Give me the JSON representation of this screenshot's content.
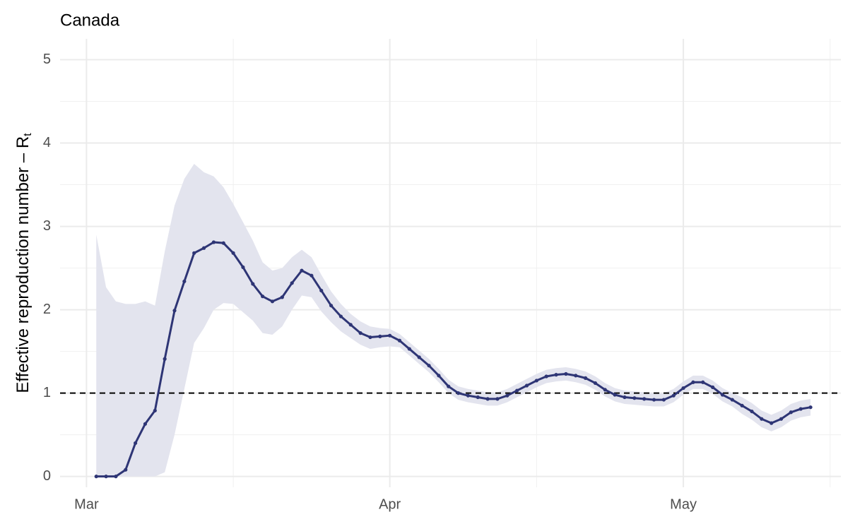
{
  "chart_data": {
    "type": "line",
    "title": "Canada",
    "ylabel": "Effective reproduction number – R",
    "ylabel_subscript": "t",
    "x": [
      1,
      2,
      3,
      4,
      5,
      6,
      7,
      8,
      9,
      10,
      11,
      12,
      13,
      14,
      15,
      16,
      17,
      18,
      19,
      20,
      21,
      22,
      23,
      24,
      25,
      26,
      27,
      28,
      29,
      30,
      31,
      32,
      33,
      34,
      35,
      36,
      37,
      38,
      39,
      40,
      41,
      42,
      43,
      44,
      45,
      46,
      47,
      48,
      49,
      50,
      51,
      52,
      53,
      54,
      55,
      56,
      57,
      58,
      59,
      60,
      61,
      62,
      63,
      64,
      65,
      66,
      67,
      68,
      69,
      70,
      71,
      72,
      73,
      74
    ],
    "values": [
      0,
      0,
      0,
      0.08,
      0.4,
      0.63,
      0.79,
      1.41,
      1.99,
      2.34,
      2.68,
      2.74,
      2.81,
      2.8,
      2.68,
      2.51,
      2.31,
      2.16,
      2.1,
      2.15,
      2.32,
      2.47,
      2.41,
      2.23,
      2.05,
      1.92,
      1.82,
      1.72,
      1.67,
      1.68,
      1.69,
      1.63,
      1.53,
      1.43,
      1.33,
      1.21,
      1.08,
      1.0,
      0.97,
      0.95,
      0.93,
      0.93,
      0.97,
      1.03,
      1.09,
      1.15,
      1.2,
      1.22,
      1.23,
      1.21,
      1.18,
      1.12,
      1.04,
      0.98,
      0.95,
      0.94,
      0.93,
      0.92,
      0.92,
      0.97,
      1.06,
      1.13,
      1.13,
      1.07,
      0.98,
      0.92,
      0.85,
      0.78,
      0.69,
      0.64,
      0.69,
      0.77,
      0.81,
      0.83
    ],
    "lower": [
      0,
      0,
      0,
      0,
      0,
      0,
      0,
      0.05,
      0.5,
      1.05,
      1.6,
      1.78,
      2.0,
      2.08,
      2.07,
      1.97,
      1.87,
      1.72,
      1.7,
      1.8,
      2.0,
      2.17,
      2.15,
      1.98,
      1.85,
      1.74,
      1.66,
      1.58,
      1.53,
      1.55,
      1.56,
      1.55,
      1.45,
      1.35,
      1.25,
      1.13,
      1.0,
      0.92,
      0.89,
      0.87,
      0.85,
      0.85,
      0.89,
      0.95,
      1.01,
      1.07,
      1.12,
      1.14,
      1.15,
      1.13,
      1.1,
      1.04,
      0.96,
      0.9,
      0.87,
      0.86,
      0.85,
      0.84,
      0.84,
      0.89,
      0.98,
      1.05,
      1.05,
      0.99,
      0.9,
      0.84,
      0.75,
      0.68,
      0.59,
      0.54,
      0.59,
      0.67,
      0.71,
      0.73
    ],
    "upper": [
      2.9,
      2.27,
      2.1,
      2.07,
      2.07,
      2.1,
      2.05,
      2.7,
      3.25,
      3.57,
      3.75,
      3.65,
      3.6,
      3.47,
      3.27,
      3.05,
      2.83,
      2.57,
      2.47,
      2.5,
      2.63,
      2.72,
      2.63,
      2.42,
      2.22,
      2.07,
      1.95,
      1.86,
      1.8,
      1.78,
      1.77,
      1.71,
      1.61,
      1.51,
      1.41,
      1.29,
      1.16,
      1.08,
      1.05,
      1.03,
      1.01,
      1.01,
      1.05,
      1.11,
      1.17,
      1.23,
      1.28,
      1.3,
      1.31,
      1.29,
      1.26,
      1.2,
      1.12,
      1.06,
      1.03,
      1.02,
      1.01,
      1.0,
      1.0,
      1.05,
      1.14,
      1.21,
      1.21,
      1.15,
      1.06,
      1.0,
      0.95,
      0.88,
      0.79,
      0.74,
      0.79,
      0.87,
      0.91,
      0.93
    ],
    "color": "#2e3575",
    "band_color": "#e3e4ee",
    "hline": 1,
    "xlim": [
      -2.7,
      77.1
    ],
    "xticks": [
      {
        "value": 0,
        "label": "Mar"
      },
      {
        "value": 31,
        "label": "Apr"
      },
      {
        "value": 61,
        "label": "May"
      }
    ],
    "xminor": [
      15,
      46,
      76
    ],
    "ylim": [
      -0.13,
      5.25
    ],
    "yticks": [
      0,
      1,
      2,
      3,
      4,
      5
    ],
    "yminor": [
      0.5,
      1.5,
      2.5,
      3.5,
      4.5
    ],
    "grid": true
  }
}
